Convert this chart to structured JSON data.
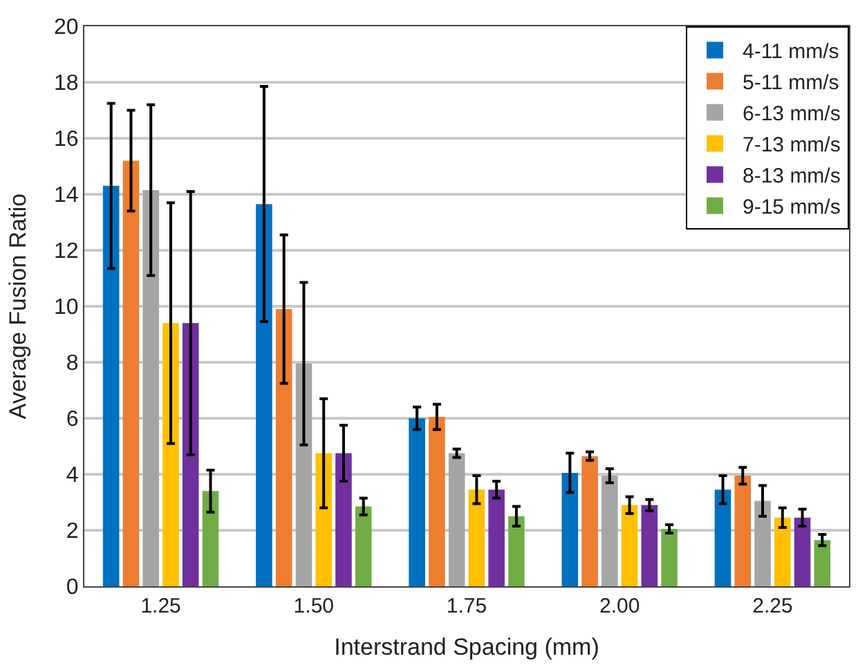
{
  "chart_data": {
    "type": "bar",
    "xlabel": "Interstrand Spacing (mm)",
    "ylabel": "Average Fusion Ratio",
    "categories": [
      "1.25",
      "1.50",
      "1.75",
      "2.00",
      "2.25"
    ],
    "series": [
      {
        "name": "4-11 mm/s",
        "color": "#0070c0",
        "values": [
          14.3,
          13.65,
          6.0,
          4.05,
          3.45
        ],
        "errors": [
          2.95,
          4.2,
          0.4,
          0.7,
          0.5
        ]
      },
      {
        "name": "5-11 mm/s",
        "color": "#ed7d31",
        "values": [
          15.2,
          9.9,
          6.05,
          4.65,
          3.95
        ],
        "errors": [
          1.8,
          2.65,
          0.45,
          0.15,
          0.3
        ]
      },
      {
        "name": "6-13 mm/s",
        "color": "#a5a5a5",
        "values": [
          14.15,
          7.95,
          4.75,
          3.95,
          3.05
        ],
        "errors": [
          3.05,
          2.9,
          0.15,
          0.25,
          0.55
        ]
      },
      {
        "name": "7-13 mm/s",
        "color": "#ffc000",
        "values": [
          9.4,
          4.75,
          3.45,
          2.9,
          2.45
        ],
        "errors": [
          4.3,
          1.95,
          0.5,
          0.3,
          0.35
        ]
      },
      {
        "name": "8-13 mm/s",
        "color": "#7030a0",
        "values": [
          9.4,
          4.75,
          3.45,
          2.9,
          2.45
        ],
        "errors": [
          4.7,
          1.0,
          0.3,
          0.2,
          0.3
        ]
      },
      {
        "name": "9-15 mm/s",
        "color": "#70ad47",
        "values": [
          3.4,
          2.85,
          2.5,
          2.05,
          1.65
        ],
        "errors": [
          0.75,
          0.3,
          0.35,
          0.15,
          0.2
        ]
      }
    ],
    "ylim": [
      0,
      20
    ],
    "yticks": [
      0,
      2,
      4,
      6,
      8,
      10,
      12,
      14,
      16,
      18,
      20
    ],
    "grid": "y",
    "legend": "top right"
  }
}
